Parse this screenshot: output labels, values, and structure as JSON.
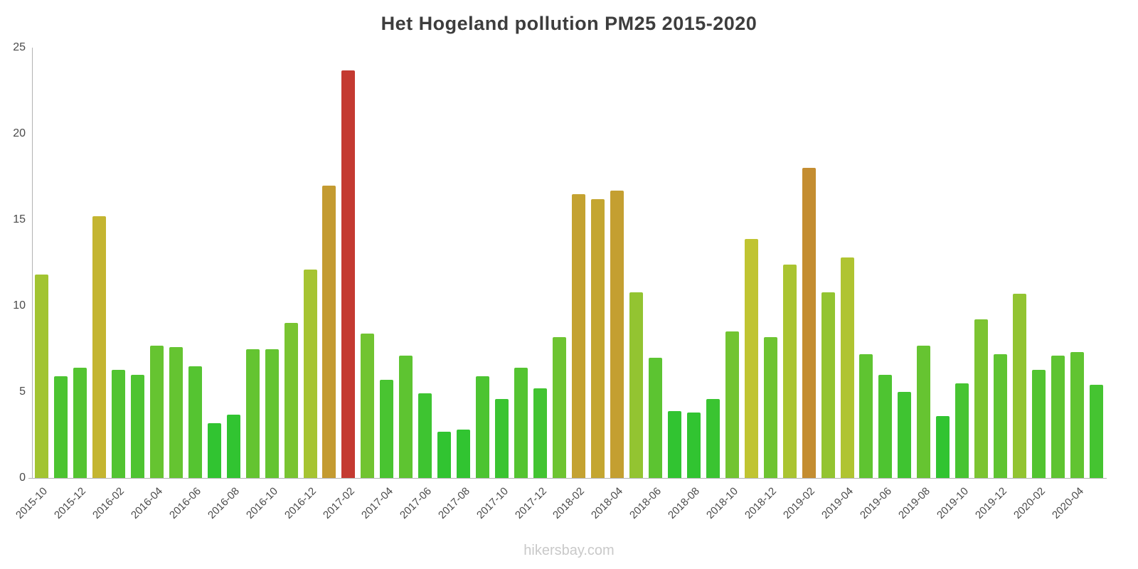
{
  "chart_data": {
    "type": "bar",
    "title": "Het Hogeland pollution PM25 2015-2020",
    "watermark": "hikersbay.com",
    "xlabel": "",
    "ylabel": "",
    "ylim": [
      0,
      25
    ],
    "yticks": [
      0,
      5,
      10,
      15,
      20,
      25
    ],
    "x_tick_every": 2,
    "grid": false,
    "legend": false,
    "axis_color": "#b3b3b3",
    "label_color": "#4a4a4a",
    "title_color": "#3d3d3d",
    "watermark_color": "#c9c9c9",
    "color_scale": {
      "type": "value-to-hue",
      "hue_max": 120,
      "value_start": 4,
      "value_span": 20,
      "hue_span": 118,
      "saturation": 60,
      "lightness": 48,
      "sample_low": "#31c431",
      "sample_mid": "#c6cf33",
      "sample_high": "#d28e2d",
      "sample_max": "#e0312b"
    },
    "x": [
      "2015-10",
      "2015-11",
      "2015-12",
      "2016-01",
      "2016-02",
      "2016-03",
      "2016-04",
      "2016-05",
      "2016-06",
      "2016-07",
      "2016-08",
      "2016-09",
      "2016-10",
      "2016-11",
      "2016-12",
      "2017-01",
      "2017-02",
      "2017-03",
      "2017-04",
      "2017-05",
      "2017-06",
      "2017-07",
      "2017-08",
      "2017-09",
      "2017-10",
      "2017-11",
      "2017-12",
      "2018-01",
      "2018-02",
      "2018-03",
      "2018-04",
      "2018-05",
      "2018-06",
      "2018-07",
      "2018-08",
      "2018-09",
      "2018-10",
      "2018-11",
      "2018-12",
      "2019-01",
      "2019-02",
      "2019-03",
      "2019-04",
      "2019-05",
      "2019-06",
      "2019-07",
      "2019-08",
      "2019-09",
      "2019-10",
      "2019-11",
      "2019-12",
      "2020-01",
      "2020-02",
      "2020-03",
      "2020-04",
      "2020-05"
    ],
    "values": [
      11.8,
      5.9,
      6.4,
      15.2,
      6.3,
      6.0,
      7.7,
      7.6,
      6.5,
      3.2,
      3.7,
      7.5,
      7.5,
      9.0,
      12.1,
      17.0,
      23.7,
      8.4,
      5.7,
      7.1,
      4.9,
      2.7,
      2.8,
      5.9,
      4.6,
      6.4,
      5.2,
      8.2,
      16.5,
      16.2,
      16.7,
      10.8,
      7.0,
      3.9,
      3.8,
      4.6,
      8.5,
      13.9,
      8.2,
      12.4,
      18.0,
      10.8,
      12.8,
      7.2,
      6.0,
      5.0,
      7.7,
      3.6,
      5.5,
      9.2,
      7.2,
      10.7,
      6.3,
      7.1,
      7.3,
      5.4
    ]
  }
}
